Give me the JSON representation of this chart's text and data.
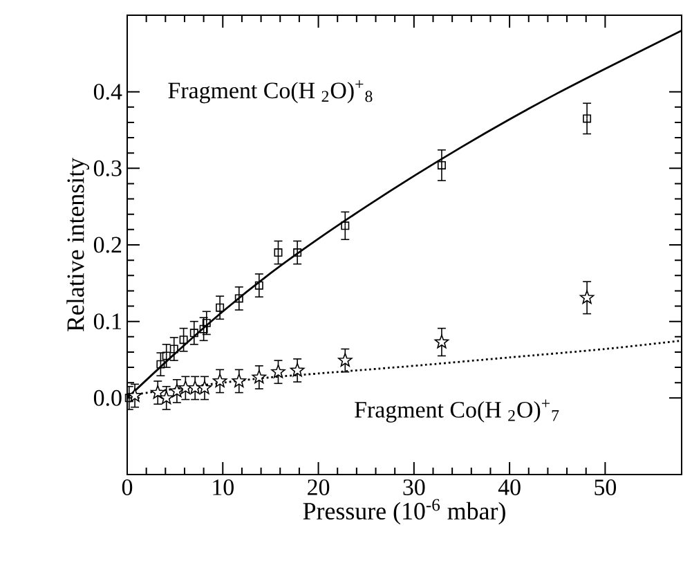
{
  "chart_data": {
    "type": "scatter",
    "xlabel": "Pressure (10$^{-6}$ mbar)",
    "ylabel": "Relative intensity",
    "xlim": [
      0,
      58
    ],
    "ylim": [
      -0.1,
      0.5
    ],
    "xticks": [
      0,
      10,
      20,
      30,
      40,
      50
    ],
    "yticks": [
      {
        "value": 0,
        "label": "0.0"
      },
      {
        "value": 0.1,
        "label": "0.1"
      },
      {
        "value": 0.2,
        "label": "0.2"
      },
      {
        "value": 0.3,
        "label": "0.3"
      },
      {
        "value": 0.4,
        "label": "0.4"
      }
    ],
    "grid": false,
    "annotations": [
      "Fragment Co(H $_{2}$O)$^{+}$$_{8}$",
      "Fragment Co(H $_{2}$O)$^{+}$$_{7}$"
    ],
    "series": [
      {
        "marker": "square",
        "color": "#000000",
        "x": [
          0.2,
          3.5,
          4.1,
          4.9,
          5.9,
          7,
          8,
          8.3,
          9.7,
          11.7,
          13.8,
          15.8,
          17.8,
          22.8,
          32.9,
          48.1
        ],
        "values": [
          0.0,
          0.044,
          0.055,
          0.064,
          0.076,
          0.085,
          0.09,
          0.098,
          0.118,
          0.13,
          0.147,
          0.19,
          0.19,
          0.225,
          0.304,
          0.365
        ],
        "errors": [
          0.015,
          0.015,
          0.015,
          0.015,
          0.015,
          0.015,
          0.015,
          0.015,
          0.015,
          0.015,
          0.015,
          0.015,
          0.015,
          0.018,
          0.02,
          0.02
        ]
      },
      {
        "marker": "star",
        "color": "#000000",
        "x": [
          0.8,
          3.2,
          4.1,
          5.2,
          6.1,
          7.1,
          8.1,
          9.7,
          11.7,
          13.8,
          15.8,
          17.8,
          22.8,
          32.9,
          48.1
        ],
        "values": [
          0.003,
          0.007,
          0.0,
          0.009,
          0.013,
          0.013,
          0.013,
          0.022,
          0.022,
          0.027,
          0.034,
          0.036,
          0.049,
          0.073,
          0.131
        ],
        "errors": [
          0.015,
          0.015,
          0.015,
          0.015,
          0.015,
          0.015,
          0.015,
          0.015,
          0.015,
          0.015,
          0.015,
          0.015,
          0.015,
          0.018,
          0.021
        ]
      },
      {
        "type": "line",
        "line_style": "solid",
        "color": "#000000",
        "x": [
          0,
          5,
          10,
          15,
          20,
          25,
          30,
          35,
          40,
          45,
          50,
          58
        ],
        "values": [
          0,
          0.058,
          0.113,
          0.163,
          0.208,
          0.25,
          0.29,
          0.328,
          0.364,
          0.398,
          0.43,
          0.48
        ]
      },
      {
        "type": "line",
        "line_style": "dotted",
        "color": "#000000",
        "x": [
          0,
          5,
          10,
          15,
          20,
          25,
          30,
          40,
          50,
          58
        ],
        "values": [
          0.003,
          0.012,
          0.02,
          0.027,
          0.032,
          0.037,
          0.042,
          0.053,
          0.064,
          0.075
        ]
      }
    ]
  }
}
